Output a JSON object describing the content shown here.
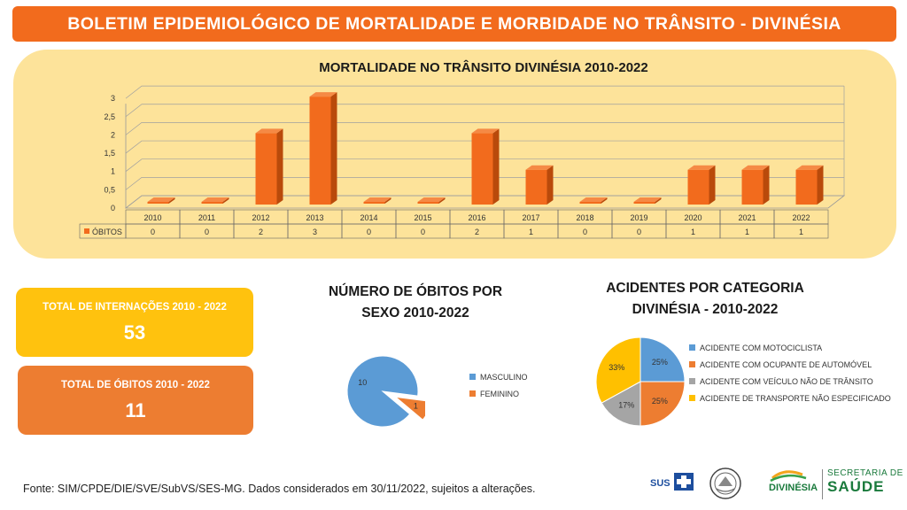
{
  "banner": {
    "title": "BOLETIM EPIDEMIOLÓGICO DE MORTALIDADE E MORBIDADE NO TRÂNSITO - DIVINÉSIA"
  },
  "colors": {
    "orange": "#f26b1d",
    "panel": "#fde39a",
    "yellow": "#ffc20e",
    "kpi_orange": "#ed7d31",
    "blue": "#5b9bd5",
    "grey": "#a5a5a5"
  },
  "kpis": [
    {
      "label": "TOTAL DE INTERNAÇÕES 2010 - 2022",
      "value": "53"
    },
    {
      "label": "TOTAL DE ÓBITOS 2010 - 2022",
      "value": "11"
    }
  ],
  "chart_data": [
    {
      "type": "bar",
      "title": "MORTALIDADE NO TRÂNSITO DIVINÉSIA 2010-2022",
      "categories": [
        "2010",
        "2011",
        "2012",
        "2013",
        "2014",
        "2015",
        "2016",
        "2017",
        "2018",
        "2019",
        "2020",
        "2021",
        "2022"
      ],
      "series": [
        {
          "name": "ÓBITOS",
          "values": [
            0,
            0,
            2,
            3,
            0,
            0,
            2,
            1,
            0,
            0,
            1,
            1,
            1
          ]
        }
      ],
      "yticks": [
        "0",
        "0,5",
        "1",
        "1,5",
        "2",
        "2,5",
        "3"
      ],
      "ylim": [
        0,
        3
      ],
      "grid": true,
      "data_table": true
    },
    {
      "type": "pie",
      "title": "NÚMERO DE ÓBITOS  POR SEXO 2010-2022",
      "labels": [
        "MASCULINO",
        "FEMININO"
      ],
      "values": [
        10,
        1
      ],
      "value_labels": [
        "10",
        "1"
      ],
      "legend": "right"
    },
    {
      "type": "pie",
      "title": "ACIDENTES POR CATEGORIA DIVINÉSIA - 2010-2022",
      "labels": [
        "ACIDENTE COM MOTOCICLISTA",
        "ACIDENTE COM OCUPANTE DE AUTOMÓVEL",
        "ACIDENTE COM VEÍCULO NÃO DE TRÂNSITO",
        "ACIDENTE DE TRANSPORTE NÃO ESPECIFICADO"
      ],
      "values": [
        25,
        25,
        17,
        33
      ],
      "value_labels": [
        "25%",
        "25%",
        "17%",
        "33%"
      ],
      "legend": "right"
    }
  ],
  "footer": {
    "source": "Fonte: SIM/CPDE/DIE/SVE/SubVS/SES-MG. Dados considerados em 30/11/2022, sujeitos a alterações."
  },
  "logos": {
    "sus": "SUS",
    "city": "DIVINÉSIA",
    "sec_line1": "SECRETARIA DE",
    "sec_line2": "SAÚDE"
  }
}
